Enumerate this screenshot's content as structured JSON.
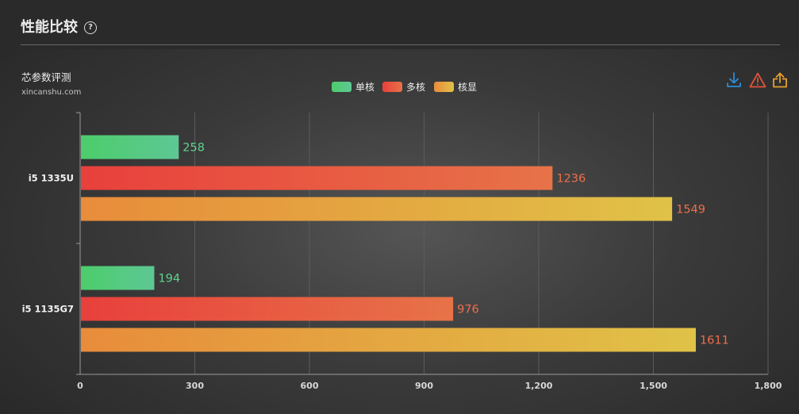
{
  "header": {
    "title": "性能比较",
    "help_icon": "question-circle-icon"
  },
  "brand": {
    "name": "芯参数评测",
    "site": "xincanshu.com"
  },
  "toolbar": {
    "icons": [
      "download-icon",
      "warning-icon",
      "share-icon"
    ],
    "colors": {
      "download": "#2b8fd6",
      "warning": "#e0533a",
      "share": "#e8a12a"
    }
  },
  "chart_data": {
    "type": "bar",
    "orientation": "horizontal",
    "categories": [
      "i5 1335U",
      "i5 1135G7"
    ],
    "series": [
      {
        "name": "单核",
        "values": [
          258,
          194
        ],
        "colors": [
          "#4ccd6a",
          "#5ec795"
        ],
        "label_color": "#5ed38e"
      },
      {
        "name": "多核",
        "values": [
          1236,
          976
        ],
        "colors": [
          "#e8403c",
          "#e77348"
        ],
        "label_color": "#ee6e4a"
      },
      {
        "name": "核显",
        "values": [
          1549,
          1611
        ],
        "colors": [
          "#e88c3b",
          "#e0c247"
        ],
        "label_color": "#ee6e4a"
      }
    ],
    "x_ticks": [
      "0",
      "300",
      "600",
      "900",
      "1,200",
      "1,500",
      "1,800"
    ],
    "xlim": [
      0,
      1800
    ],
    "grid": true,
    "legend_position": "top-center",
    "data_labels": true
  }
}
